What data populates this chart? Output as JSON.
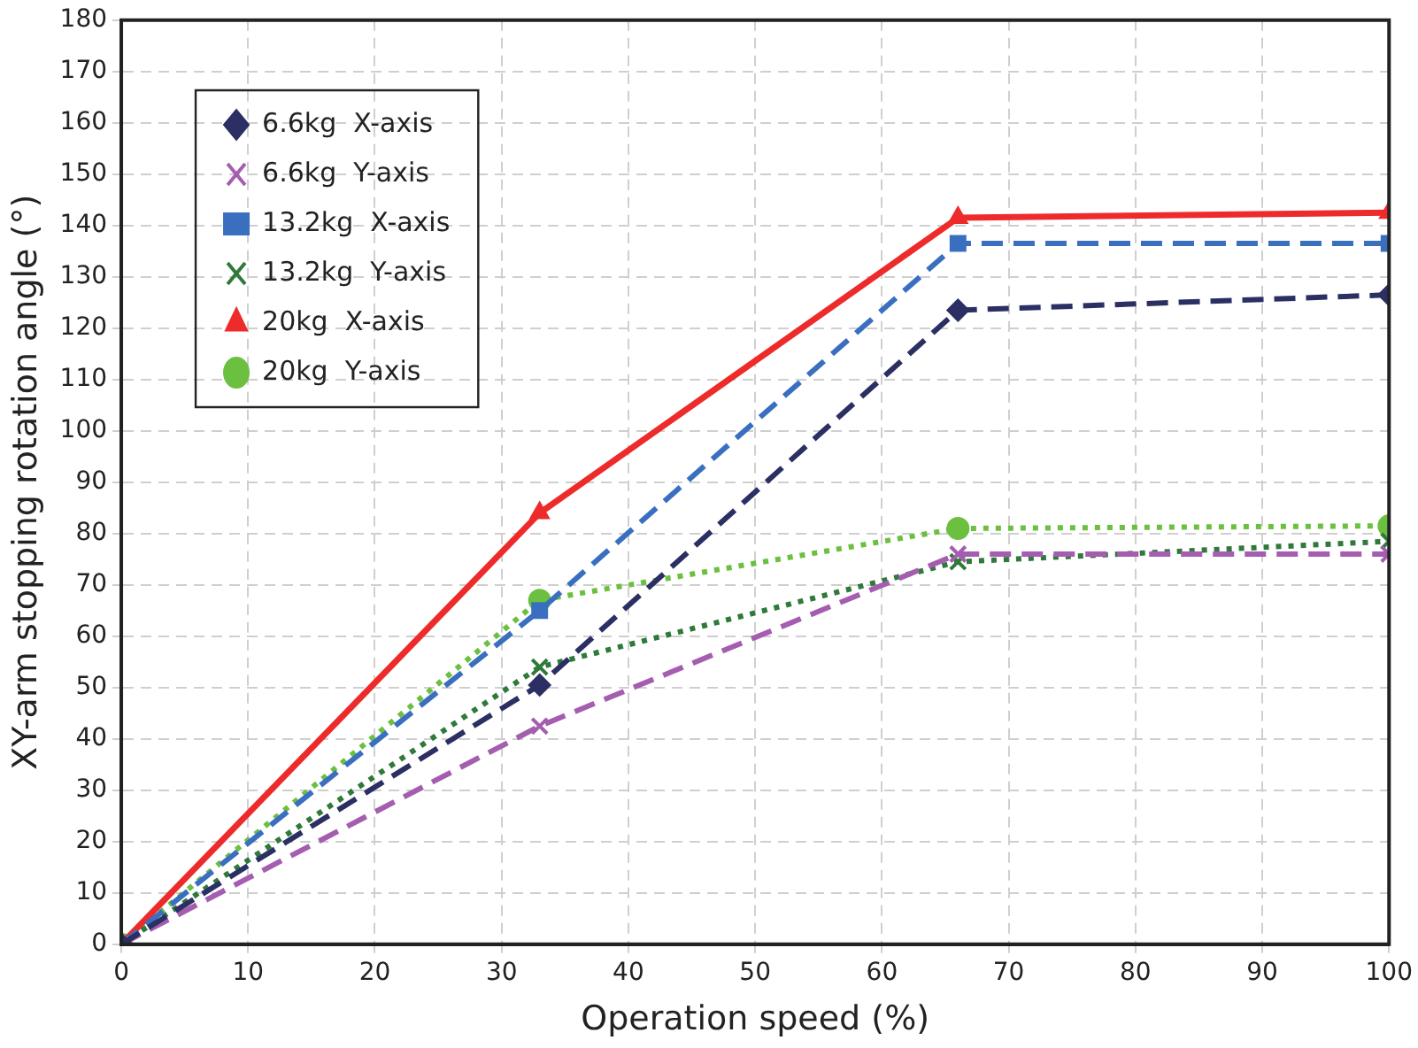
{
  "chart_data": {
    "type": "line",
    "xlabel": "Operation speed (%)",
    "ylabel": "XY-arm stopping rotation angle (°)",
    "x": [
      0,
      33,
      66,
      100
    ],
    "series": [
      {
        "name": "6.6kg  X-axis",
        "color": "#2b2f63",
        "values": [
          0,
          50.5,
          123.5,
          126.5
        ],
        "marker": "diamond",
        "line_style": "dashed"
      },
      {
        "name": "6.6kg  Y-axis",
        "color": "#a55db0",
        "values": [
          0,
          42.5,
          76,
          76
        ],
        "marker": "cross",
        "line_style": "dashed"
      },
      {
        "name": "13.2kg  X-axis",
        "color": "#3a6fc0",
        "values": [
          0,
          65,
          136.5,
          136.5
        ],
        "marker": "square",
        "line_style": "dashed"
      },
      {
        "name": "13.2kg  Y-axis",
        "color": "#2f7a3a",
        "values": [
          0,
          54,
          74.5,
          78.5
        ],
        "marker": "cross",
        "line_style": "dotted"
      },
      {
        "name": "20kg  X-axis",
        "color": "#ee2b2b",
        "values": [
          0,
          84,
          141.5,
          142.5
        ],
        "marker": "triangle",
        "line_style": "solid"
      },
      {
        "name": "20kg  Y-axis",
        "color": "#6cc040",
        "values": [
          0,
          67,
          81,
          81.5
        ],
        "marker": "circle",
        "line_style": "dotted"
      }
    ],
    "xlim": [
      0,
      100
    ],
    "xticks": [
      0,
      10,
      20,
      30,
      40,
      50,
      60,
      70,
      80,
      90,
      100
    ],
    "ylim": [
      0,
      180
    ],
    "yticks": [
      0,
      10,
      20,
      30,
      40,
      50,
      60,
      70,
      80,
      90,
      100,
      110,
      120,
      130,
      140,
      150,
      160,
      170,
      180
    ],
    "grid": true,
    "legend": "top left"
  }
}
